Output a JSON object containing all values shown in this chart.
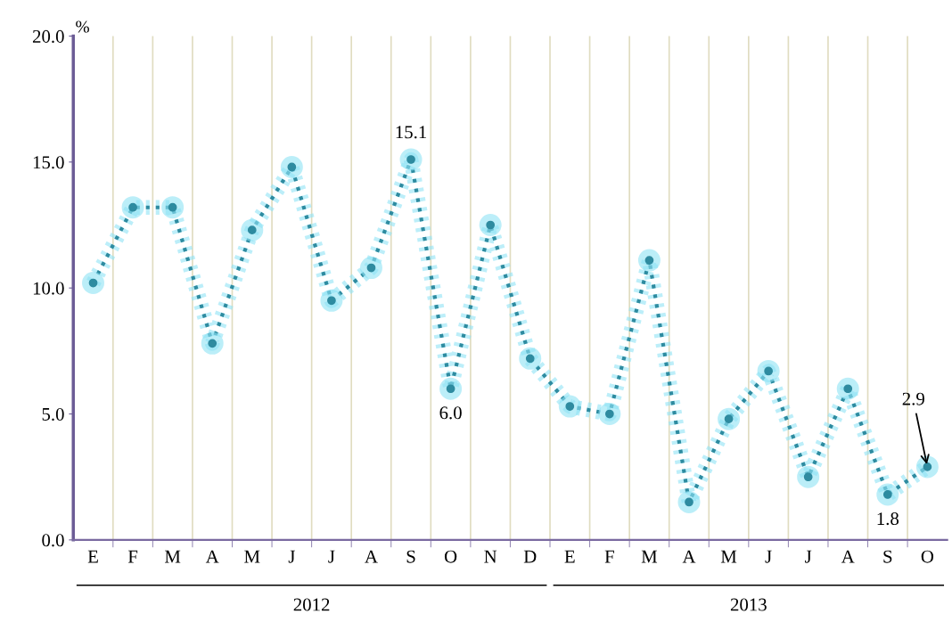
{
  "chart_data": {
    "type": "line",
    "ylabel": "%",
    "categories": [
      "E",
      "F",
      "M",
      "A",
      "M",
      "J",
      "J",
      "A",
      "S",
      "O",
      "N",
      "D",
      "E",
      "F",
      "M",
      "A",
      "M",
      "J",
      "J",
      "A",
      "S",
      "O"
    ],
    "series": [
      {
        "color": "#2e8ba0",
        "values": [
          10.2,
          13.2,
          13.2,
          7.8,
          12.3,
          14.8,
          9.5,
          10.8,
          15.1,
          6.0,
          12.5,
          7.2,
          5.3,
          5.0,
          11.1,
          1.5,
          4.8,
          6.7,
          2.5,
          6.0,
          1.8,
          2.9
        ],
        "value_labels": [
          null,
          null,
          null,
          null,
          null,
          null,
          null,
          null,
          "15.1",
          "6.0",
          null,
          null,
          null,
          null,
          null,
          null,
          null,
          null,
          null,
          null,
          "1.8",
          "2.9"
        ]
      }
    ],
    "ylim": [
      0,
      20
    ],
    "yticks": [
      {
        "value": 0,
        "label": "0.0"
      },
      {
        "value": 5,
        "label": "5.0"
      },
      {
        "value": 10,
        "label": "10.0"
      },
      {
        "value": 15,
        "label": "15.0"
      },
      {
        "value": 20,
        "label": "20.0"
      }
    ],
    "grid": "x",
    "marker": "circle",
    "line_style": "dotted",
    "annotations": [
      "2012",
      "2013"
    ]
  }
}
